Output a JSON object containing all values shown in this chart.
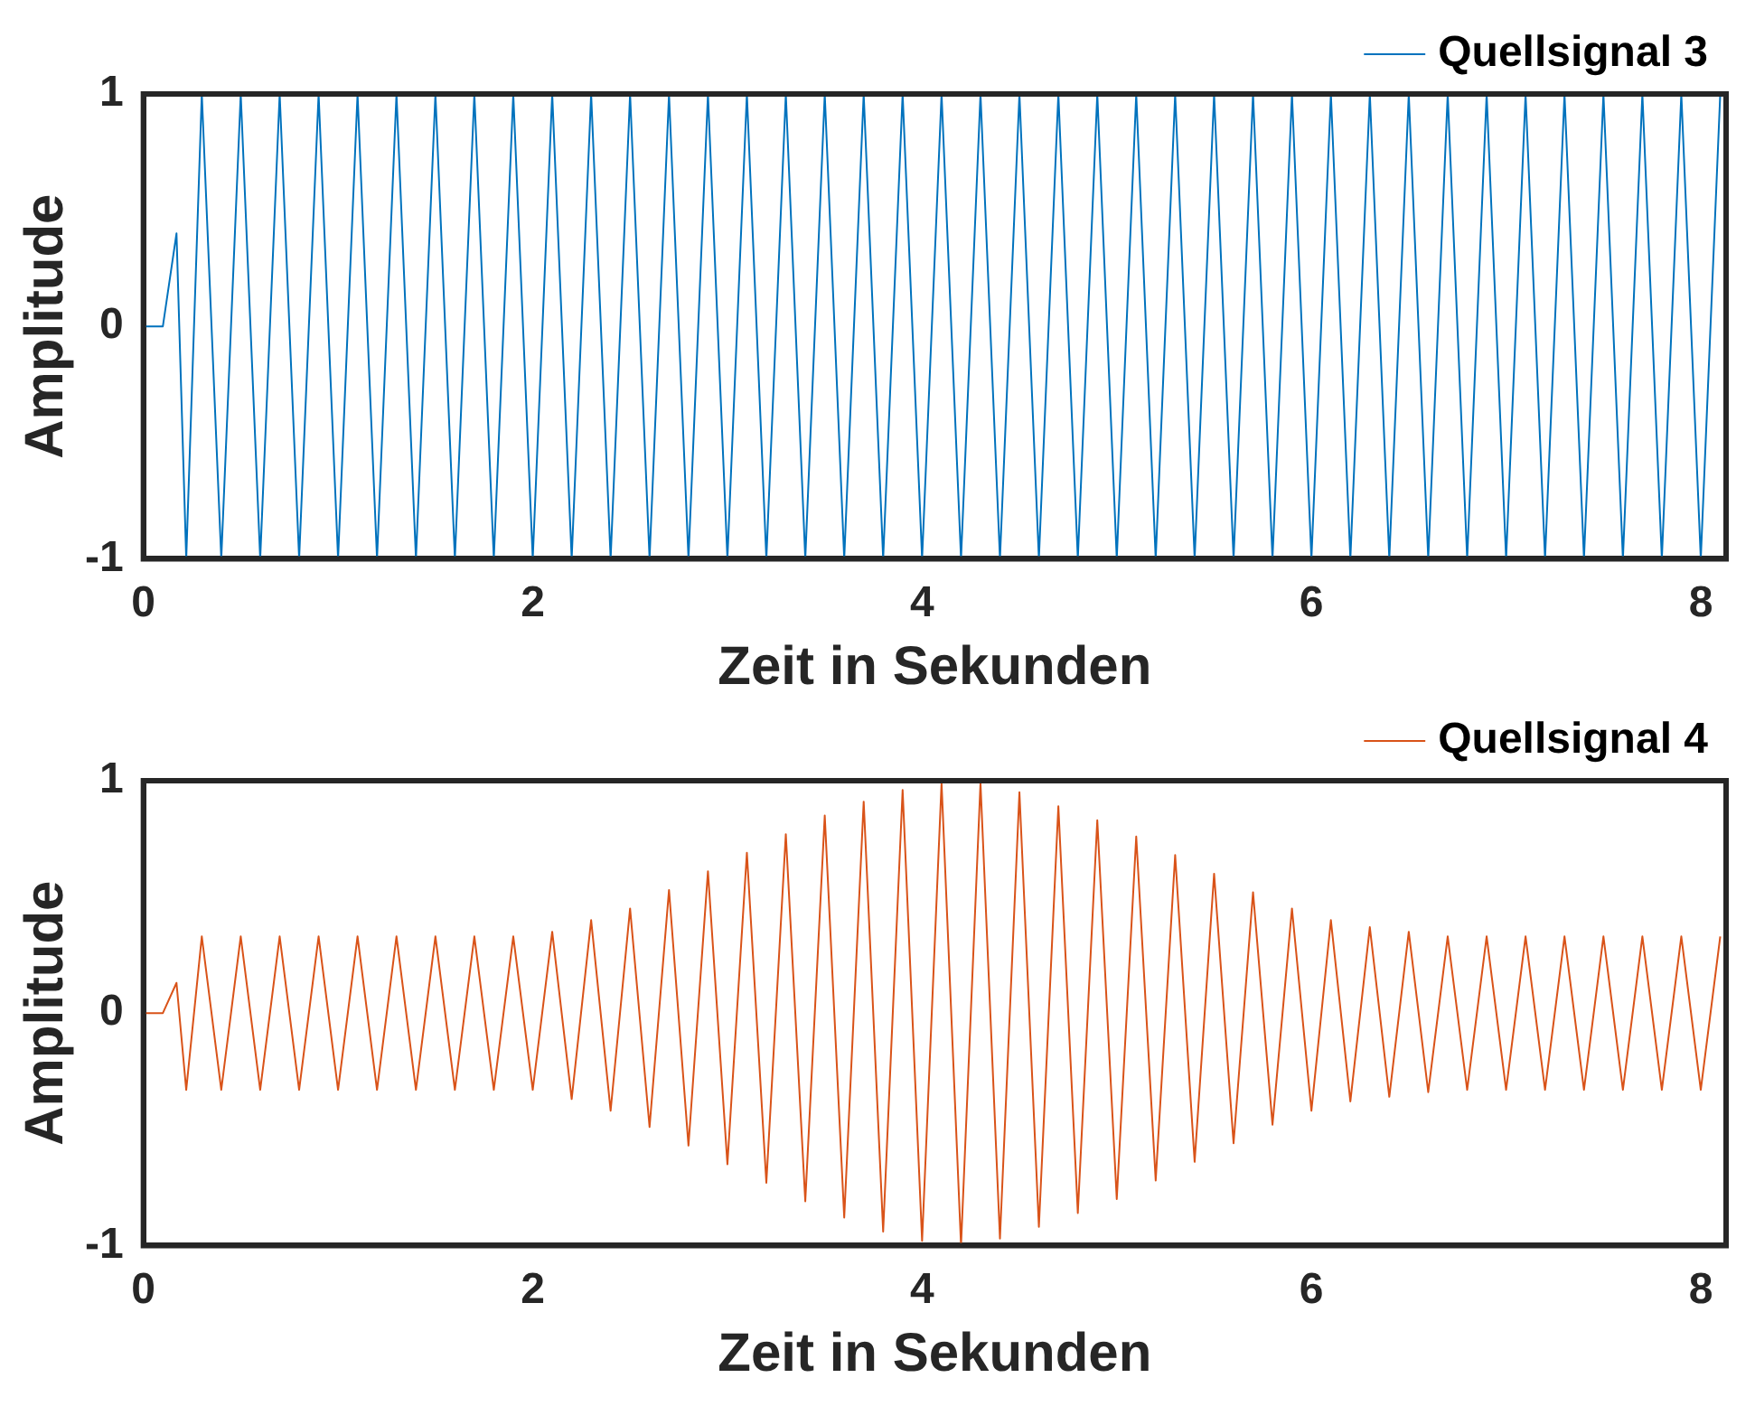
{
  "chart_data": [
    {
      "type": "line",
      "xlabel": "Zeit in Sekunden",
      "ylabel": "Amplitude",
      "xlim": [
        0,
        8.13
      ],
      "xticks": [
        0,
        2,
        4,
        6,
        8
      ],
      "ylim": [
        -1,
        1
      ],
      "yticks": [
        -1,
        0,
        1
      ],
      "grid": false,
      "legend": "top right",
      "series": [
        {
          "name": "Quellsignal 3",
          "color": "#0072bd",
          "x": [
            0,
            0.1,
            0.17,
            0.22,
            0.3,
            0.4,
            0.5,
            0.6,
            0.7,
            0.8,
            0.9,
            1.0,
            1.1,
            1.2,
            1.3,
            1.4,
            1.5,
            1.6,
            1.7,
            1.8,
            1.9,
            2.0,
            2.1,
            2.2,
            2.3,
            2.4,
            2.5,
            2.6,
            2.7,
            2.8,
            2.9,
            3.0,
            3.1,
            3.2,
            3.3,
            3.4,
            3.5,
            3.6,
            3.7,
            3.8,
            3.9,
            4.0,
            4.1,
            4.2,
            4.3,
            4.4,
            4.5,
            4.6,
            4.7,
            4.8,
            4.9,
            5.0,
            5.1,
            5.2,
            5.3,
            5.4,
            5.5,
            5.6,
            5.7,
            5.8,
            5.9,
            6.0,
            6.1,
            6.2,
            6.3,
            6.4,
            6.5,
            6.6,
            6.7,
            6.8,
            6.9,
            7.0,
            7.1,
            7.2,
            7.3,
            7.4,
            7.5,
            7.6,
            7.7,
            7.8,
            7.9,
            8.0,
            8.1
          ],
          "values": [
            0,
            0,
            0.4,
            -1,
            1,
            -1,
            1,
            -1,
            1,
            -1,
            1,
            -1,
            1,
            -1,
            1,
            -1,
            1,
            -1,
            1,
            -1,
            1,
            -1,
            1,
            -1,
            1,
            -1,
            1,
            -1,
            1,
            -1,
            1,
            -1,
            1,
            -1,
            1,
            -1,
            1,
            -1,
            1,
            -1,
            1,
            -1,
            1,
            -1,
            1,
            -1,
            1,
            -1,
            1,
            -1,
            1,
            -1,
            1,
            -1,
            1,
            -1,
            1,
            -1,
            1,
            -1,
            1,
            -1,
            1,
            -1,
            1,
            -1,
            1,
            -1,
            1,
            -1,
            1,
            -1,
            1,
            -1,
            1,
            -1,
            1,
            -1,
            1,
            -1,
            1,
            -1,
            1
          ]
        }
      ]
    },
    {
      "type": "line",
      "xlabel": "Zeit in Sekunden",
      "ylabel": "Amplitude",
      "xlim": [
        0,
        8.13
      ],
      "xticks": [
        0,
        2,
        4,
        6,
        8
      ],
      "ylim": [
        -1,
        1
      ],
      "yticks": [
        -1,
        0,
        1
      ],
      "grid": false,
      "legend": "top right",
      "series": [
        {
          "name": "Quellsignal 4",
          "color": "#d95319",
          "x": [
            0,
            0.1,
            0.17,
            0.22,
            0.3,
            0.4,
            0.5,
            0.6,
            0.7,
            0.8,
            0.9,
            1.0,
            1.1,
            1.2,
            1.3,
            1.4,
            1.5,
            1.6,
            1.7,
            1.8,
            1.9,
            2.0,
            2.1,
            2.2,
            2.3,
            2.4,
            2.5,
            2.6,
            2.7,
            2.8,
            2.9,
            3.0,
            3.1,
            3.2,
            3.3,
            3.4,
            3.5,
            3.6,
            3.7,
            3.8,
            3.9,
            4.0,
            4.1,
            4.2,
            4.3,
            4.4,
            4.5,
            4.6,
            4.7,
            4.8,
            4.9,
            5.0,
            5.1,
            5.2,
            5.3,
            5.4,
            5.5,
            5.6,
            5.7,
            5.8,
            5.9,
            6.0,
            6.1,
            6.2,
            6.3,
            6.4,
            6.5,
            6.6,
            6.7,
            6.8,
            6.9,
            7.0,
            7.1,
            7.2,
            7.3,
            7.4,
            7.5,
            7.6,
            7.7,
            7.8,
            7.9,
            8.0,
            8.1
          ],
          "values": [
            0,
            0,
            0.13,
            -0.33,
            0.33,
            -0.33,
            0.33,
            -0.33,
            0.33,
            -0.33,
            0.33,
            -0.33,
            0.33,
            -0.33,
            0.33,
            -0.33,
            0.33,
            -0.33,
            0.33,
            -0.33,
            0.33,
            -0.33,
            0.35,
            -0.37,
            0.4,
            -0.42,
            0.45,
            -0.49,
            0.53,
            -0.57,
            0.61,
            -0.65,
            0.69,
            -0.73,
            0.77,
            -0.81,
            0.85,
            -0.88,
            0.91,
            -0.94,
            0.96,
            -0.98,
            0.99,
            -1,
            0.99,
            -0.97,
            0.95,
            -0.92,
            0.89,
            -0.86,
            0.83,
            -0.8,
            0.76,
            -0.72,
            0.68,
            -0.64,
            0.6,
            -0.56,
            0.52,
            -0.48,
            0.45,
            -0.42,
            0.4,
            -0.38,
            0.37,
            -0.36,
            0.35,
            -0.34,
            0.33,
            -0.33,
            0.33,
            -0.33,
            0.33,
            -0.33,
            0.33,
            -0.33,
            0.33,
            -0.33,
            0.33,
            -0.33,
            0.33,
            -0.33,
            0.33
          ]
        }
      ]
    }
  ]
}
